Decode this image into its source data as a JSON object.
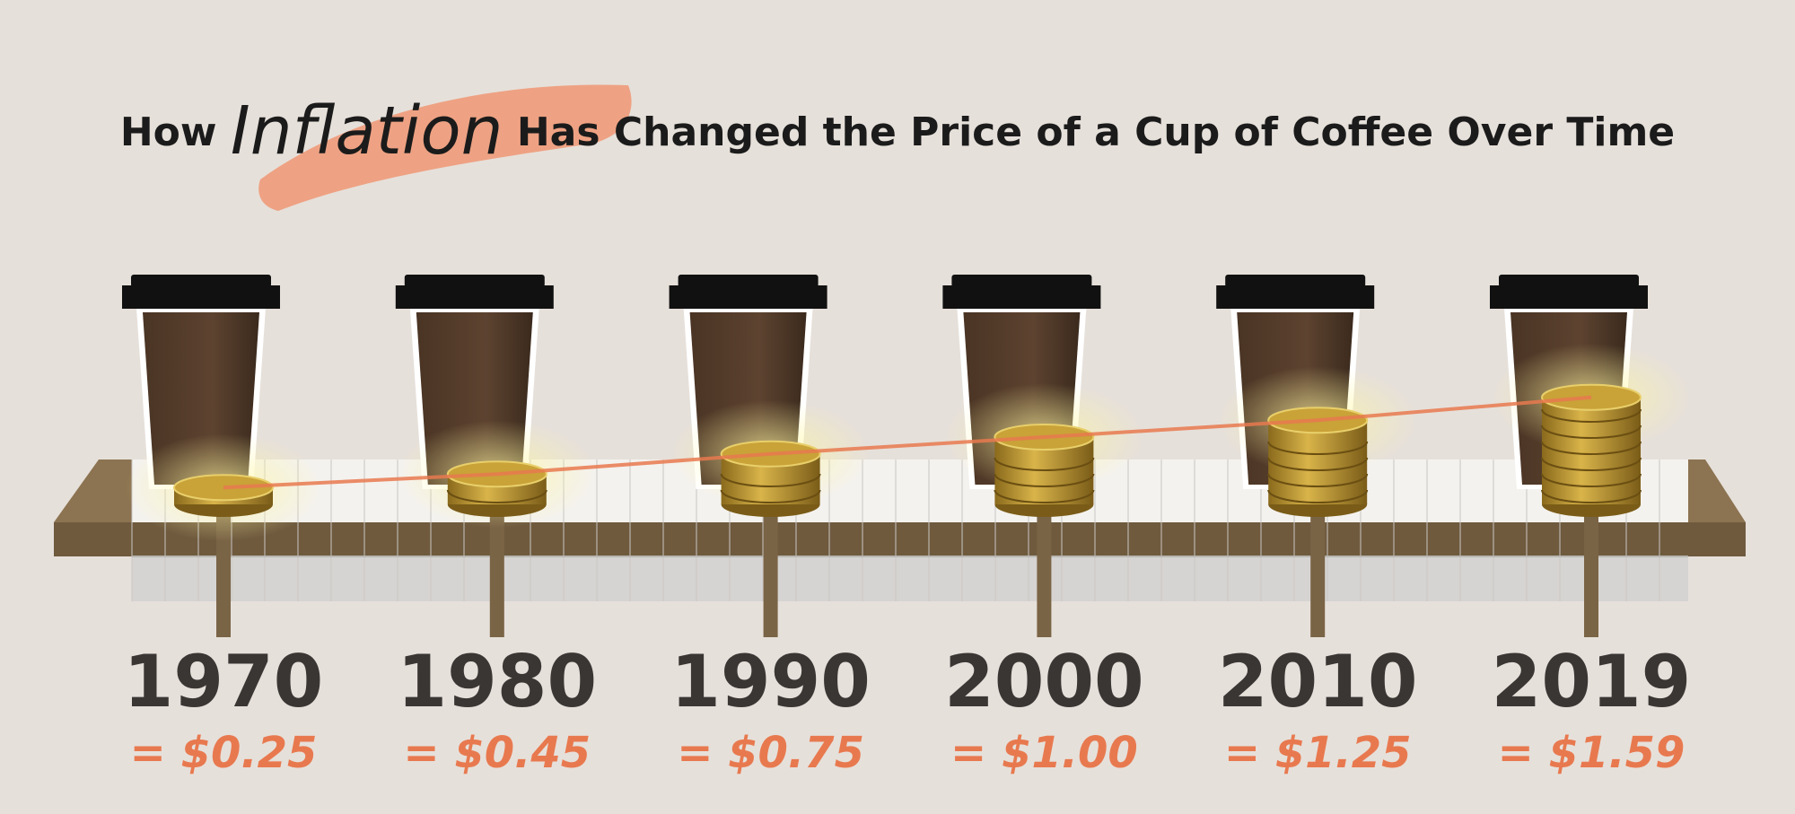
{
  "chart_data": {
    "type": "coin-stack",
    "title": {
      "prefix": "How",
      "emphasis": "Inflation",
      "suffix": "Has Changed the Price of a Cup of Coffee Over Time"
    },
    "categories": [
      "1970",
      "1980",
      "1990",
      "2000",
      "2010",
      "2019"
    ],
    "values": [
      0.25,
      0.45,
      0.75,
      1.0,
      1.25,
      1.59
    ],
    "value_labels": [
      "= $0.25",
      "= $0.45",
      "= $0.75",
      "= $1.00",
      "= $1.25",
      "= $1.59"
    ],
    "color": "#c9a238",
    "line_color": "#e8794f",
    "label_color": "#e8794f"
  }
}
